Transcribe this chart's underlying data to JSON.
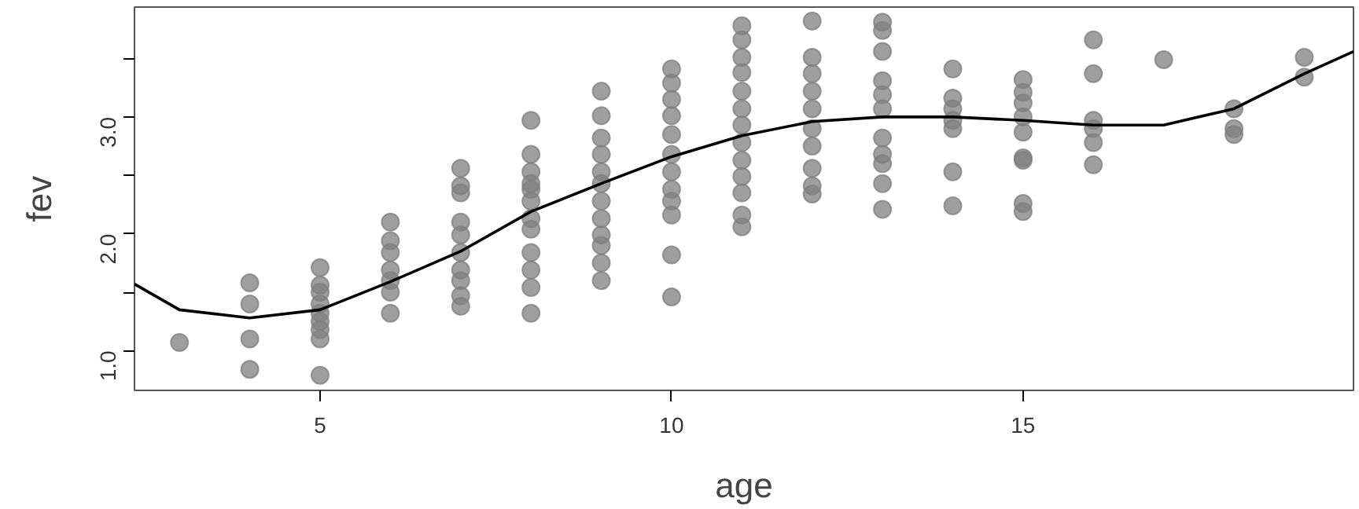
{
  "chart_data": {
    "type": "scatter",
    "xlabel": "age",
    "ylabel": "fev",
    "xlim": [
      2.36,
      19.7
    ],
    "ylim": [
      0.66,
      3.94
    ],
    "xticks": [
      5,
      10,
      15
    ],
    "yticks": [
      {
        "value": 1,
        "label": "1.0"
      },
      {
        "value": 1.5,
        "label": null
      },
      {
        "value": 2,
        "label": "2.0"
      },
      {
        "value": 2.5,
        "label": null
      },
      {
        "value": 3,
        "label": "3.0"
      },
      {
        "value": 3.5,
        "label": null
      }
    ],
    "grid": false,
    "marker": "circle",
    "series": [
      {
        "color": "#7f7f7f",
        "x": [
          3,
          4,
          4,
          4,
          4,
          5,
          5,
          5,
          5,
          5,
          5,
          5,
          5,
          5,
          6,
          6,
          6,
          6,
          6,
          6,
          6,
          7,
          7,
          7,
          7,
          7,
          7,
          7,
          7,
          7,
          7,
          8,
          8,
          8,
          8,
          8,
          8,
          8,
          8,
          8,
          8,
          8,
          8,
          9,
          9,
          9,
          9,
          9,
          9,
          9,
          9,
          9,
          9,
          9,
          9,
          10,
          10,
          10,
          10,
          10,
          10,
          10,
          10,
          10,
          10,
          10,
          10,
          11,
          11,
          11,
          11,
          11,
          11,
          11,
          11,
          11,
          11,
          11,
          11,
          11,
          12,
          12,
          12,
          12,
          12,
          12,
          12,
          12,
          12,
          12,
          13,
          13,
          13,
          13,
          13,
          13,
          13,
          13,
          13,
          13,
          13,
          14,
          14,
          14,
          14,
          14,
          14,
          14,
          15,
          15,
          15,
          15,
          15,
          15,
          15,
          15,
          15,
          16,
          16,
          16,
          16,
          16,
          16,
          17,
          18,
          18,
          18,
          19,
          19
        ],
        "values": [
          1.07,
          1.58,
          1.4,
          1.1,
          0.84,
          1.71,
          1.56,
          1.5,
          1.4,
          1.32,
          1.25,
          1.18,
          1.1,
          0.79,
          2.1,
          1.94,
          1.84,
          1.69,
          1.6,
          1.5,
          1.32,
          2.56,
          2.41,
          2.35,
          2.1,
          1.99,
          1.84,
          1.69,
          1.6,
          1.47,
          1.38,
          2.97,
          2.68,
          2.53,
          2.43,
          2.38,
          2.28,
          2.13,
          2.04,
          1.84,
          1.69,
          1.54,
          1.32,
          3.22,
          3.01,
          2.82,
          2.68,
          2.53,
          2.43,
          2.28,
          2.13,
          1.99,
          1.9,
          1.75,
          1.6,
          3.41,
          3.29,
          3.15,
          3.01,
          2.85,
          2.68,
          2.53,
          2.38,
          2.28,
          2.16,
          1.82,
          1.46,
          3.78,
          3.66,
          3.51,
          3.38,
          3.22,
          3.07,
          2.93,
          2.78,
          2.63,
          2.49,
          2.35,
          2.16,
          2.06,
          3.82,
          3.51,
          3.37,
          3.22,
          3.07,
          2.9,
          2.75,
          2.56,
          2.41,
          2.34,
          3.81,
          3.74,
          3.56,
          3.31,
          3.19,
          3.07,
          2.82,
          2.68,
          2.6,
          2.43,
          2.21,
          3.41,
          3.16,
          3.07,
          2.97,
          2.9,
          2.53,
          2.24,
          3.32,
          3.21,
          3.12,
          3.0,
          2.87,
          2.65,
          2.63,
          2.26,
          2.19,
          3.66,
          3.37,
          2.97,
          2.9,
          2.78,
          2.59,
          3.49,
          3.07,
          2.9,
          2.85,
          3.51,
          3.34
        ]
      },
      {
        "type": "line",
        "color": "#000000",
        "line_style": "solid",
        "marker": "none",
        "x": [
          2.36,
          3,
          4,
          5,
          6,
          7,
          8,
          9,
          10,
          11,
          12,
          13,
          14,
          15,
          16,
          17,
          18,
          19,
          19.7
        ],
        "values": [
          1.57,
          1.35,
          1.28,
          1.35,
          1.59,
          1.85,
          2.19,
          2.43,
          2.66,
          2.84,
          2.96,
          3.0,
          3.0,
          2.97,
          2.93,
          2.93,
          3.07,
          3.37,
          3.56
        ]
      }
    ]
  }
}
